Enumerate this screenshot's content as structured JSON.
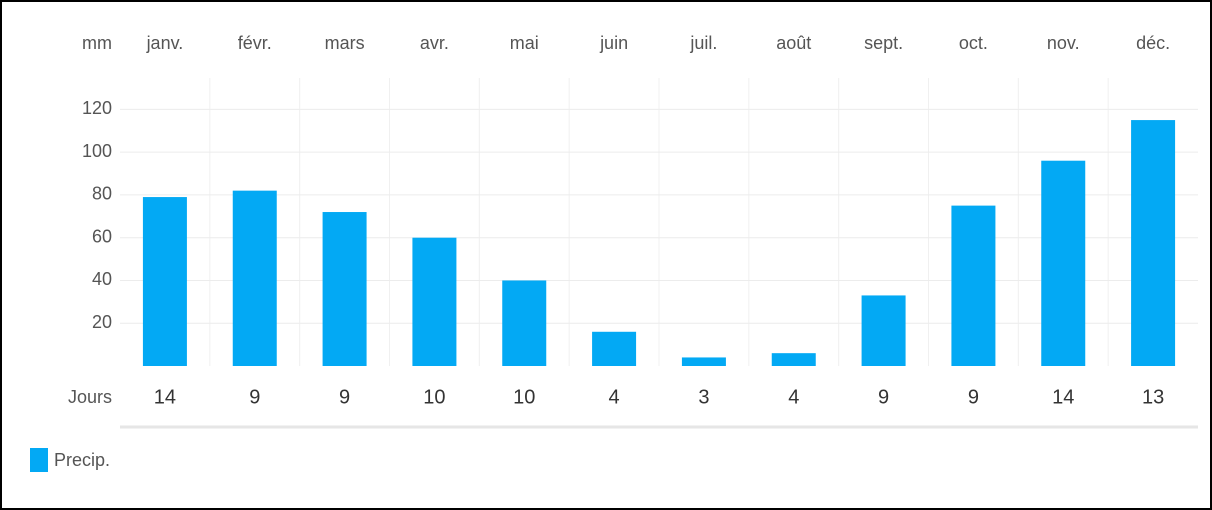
{
  "chart_data": {
    "type": "bar",
    "y_unit": "mm",
    "categories": [
      "janv.",
      "févr.",
      "mars",
      "avr.",
      "mai",
      "juin",
      "juil.",
      "août",
      "sept.",
      "oct.",
      "nov.",
      "déc."
    ],
    "series": [
      {
        "name": "Precip.",
        "color": "#03a9f4",
        "values": [
          79,
          82,
          72,
          60,
          40,
          16,
          4,
          6,
          33,
          75,
          96,
          115
        ]
      }
    ],
    "days_label": "Jours",
    "days": [
      14,
      9,
      9,
      10,
      10,
      4,
      3,
      4,
      9,
      9,
      14,
      13
    ],
    "ylim": [
      0,
      130
    ],
    "yticks": [
      20,
      40,
      60,
      80,
      100,
      120
    ],
    "grid": true
  }
}
